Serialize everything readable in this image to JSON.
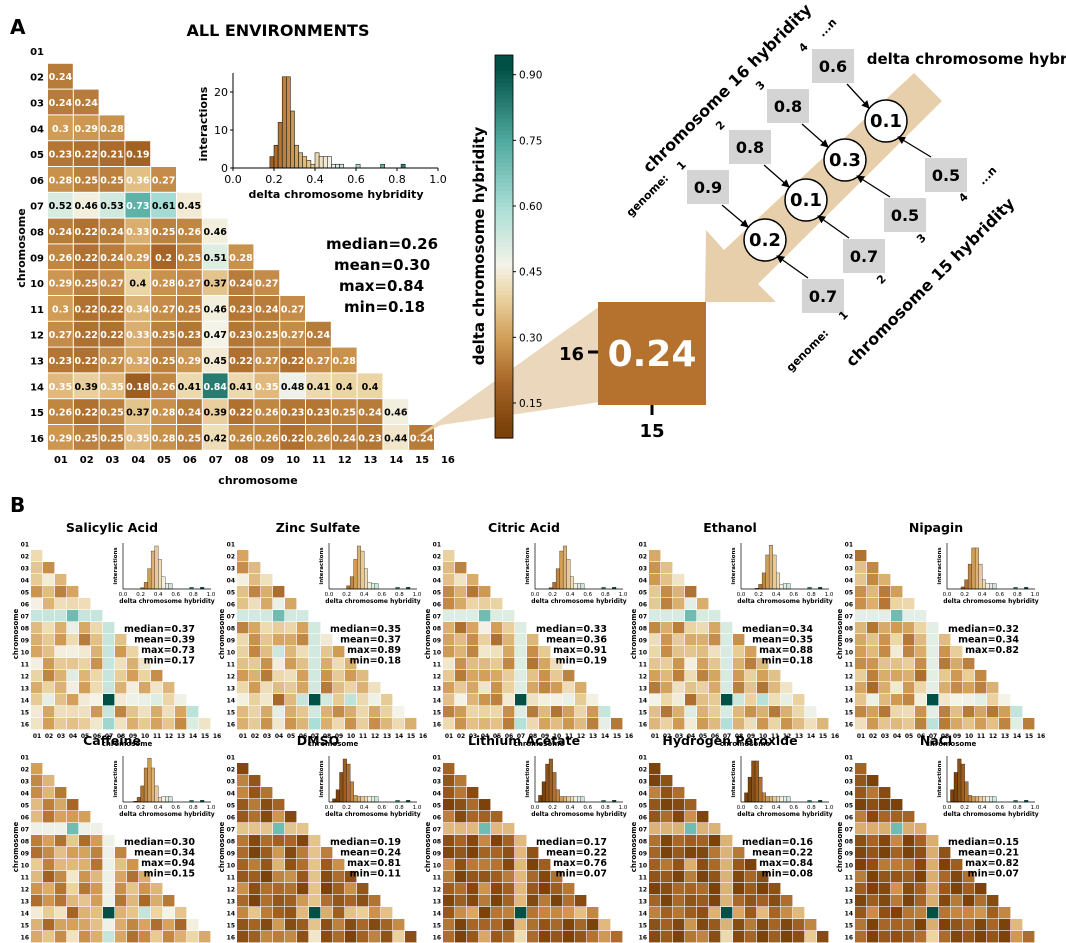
{
  "panel_a": {
    "letter": "A",
    "title": "ALL ENVIRONMENTS",
    "axis_label": "chromosome",
    "chromosomes": [
      "01",
      "02",
      "03",
      "04",
      "05",
      "06",
      "07",
      "08",
      "09",
      "10",
      "11",
      "12",
      "13",
      "14",
      "15",
      "16"
    ],
    "rows": [
      [],
      [
        0.24
      ],
      [
        0.24,
        0.24
      ],
      [
        0.3,
        0.29,
        0.28
      ],
      [
        0.23,
        0.22,
        0.21,
        0.19
      ],
      [
        0.28,
        0.25,
        0.25,
        0.36,
        0.27
      ],
      [
        0.52,
        0.46,
        0.53,
        0.73,
        0.61,
        0.45
      ],
      [
        0.24,
        0.22,
        0.24,
        0.33,
        0.25,
        0.26,
        0.46
      ],
      [
        0.26,
        0.22,
        0.24,
        0.29,
        0.2,
        0.25,
        0.51,
        0.28
      ],
      [
        0.29,
        0.25,
        0.27,
        0.4,
        0.28,
        0.27,
        0.37,
        0.24,
        0.27
      ],
      [
        0.3,
        0.22,
        0.22,
        0.34,
        0.27,
        0.25,
        0.46,
        0.23,
        0.24,
        0.27
      ],
      [
        0.27,
        0.22,
        0.22,
        0.33,
        0.25,
        0.23,
        0.47,
        0.23,
        0.25,
        0.27,
        0.24
      ],
      [
        0.23,
        0.22,
        0.27,
        0.32,
        0.25,
        0.29,
        0.45,
        0.22,
        0.27,
        0.22,
        0.27,
        0.28
      ],
      [
        0.35,
        0.39,
        0.35,
        0.18,
        0.26,
        0.41,
        0.84,
        0.41,
        0.35,
        0.48,
        0.41,
        0.4,
        0.4
      ],
      [
        0.26,
        0.22,
        0.25,
        0.37,
        0.28,
        0.24,
        0.39,
        0.22,
        0.26,
        0.23,
        0.23,
        0.25,
        0.24,
        0.46
      ],
      [
        0.29,
        0.25,
        0.25,
        0.35,
        0.28,
        0.25,
        0.42,
        0.26,
        0.26,
        0.22,
        0.26,
        0.24,
        0.23,
        0.44,
        0.24
      ]
    ],
    "stats": [
      "median=0.26",
      "mean=0.30",
      "max=0.84",
      "min=0.18"
    ],
    "histogram": {
      "ylabel": "interactions",
      "xlabel": "delta chromosome hybridity",
      "yticks": [
        "0",
        "10",
        "20"
      ],
      "xticks": [
        "0.0",
        "0.2",
        "0.4",
        "0.6",
        "0.8",
        "1.0"
      ]
    },
    "colorbar": {
      "label": "delta chromosome hybridity",
      "ticks": [
        "0.90",
        "0.75",
        "0.60",
        "0.45",
        "0.30",
        "0.15"
      ]
    },
    "zoom": {
      "value": "0.24",
      "row_label": "16",
      "col_label": "15"
    }
  },
  "schematic": {
    "axis_title": "delta chromosome hybridity",
    "ch16_label": "chromosome 16 hybridity",
    "ch15_label": "chromosome 15 hybridity",
    "genome_label_16": "genome:",
    "genome_label_15": "genome:",
    "index_labels_16": [
      "1",
      "2",
      "3",
      "4",
      "...n"
    ],
    "index_labels_15": [
      "1",
      "2",
      "3",
      "4",
      "...n"
    ],
    "ch16_values": [
      "0.9",
      "0.8",
      "0.8",
      "0.6"
    ],
    "ch15_values": [
      "0.7",
      "0.7",
      "0.5",
      "0.5"
    ],
    "delta_values": [
      "0.2",
      "0.1",
      "0.3",
      "0.1"
    ]
  },
  "panel_b": {
    "letter": "B",
    "axis_label": "chromosome",
    "hist_xlabel": "delta chromosome hybridity",
    "hist_ylabel": "interactions",
    "hist_xticks": [
      "0.0",
      "0.2",
      "0.4",
      "0.6",
      "0.8",
      "1.0"
    ],
    "panels": [
      {
        "title": "Salicylic Acid",
        "stats": [
          "median=0.37",
          "mean=0.39",
          "max=0.73",
          "min=0.17"
        ],
        "base": 0.37
      },
      {
        "title": "Zinc Sulfate",
        "stats": [
          "median=0.35",
          "mean=0.37",
          "max=0.89",
          "min=0.18"
        ],
        "base": 0.35
      },
      {
        "title": "Citric Acid",
        "stats": [
          "median=0.33",
          "mean=0.36",
          "max=0.91",
          "min=0.19"
        ],
        "base": 0.33
      },
      {
        "title": "Ethanol",
        "stats": [
          "median=0.34",
          "mean=0.35",
          "max=0.88",
          "min=0.18"
        ],
        "base": 0.34
      },
      {
        "title": "Nipagin",
        "stats": [
          "median=0.32",
          "mean=0.34",
          "max=0.82"
        ],
        "base": 0.32
      },
      {
        "title": "Caffeine",
        "stats": [
          "median=0.30",
          "mean=0.34",
          "max=0.94",
          "min=0.15"
        ],
        "base": 0.3
      },
      {
        "title": "DMSO",
        "stats": [
          "median=0.19",
          "mean=0.24",
          "max=0.81",
          "min=0.11"
        ],
        "base": 0.19
      },
      {
        "title": "Lithium Acetate",
        "stats": [
          "median=0.17",
          "mean=0.22",
          "max=0.76",
          "min=0.07"
        ],
        "base": 0.17
      },
      {
        "title": "Hydrogen Peroxide",
        "stats": [
          "median=0.16",
          "mean=0.22",
          "max=0.84",
          "min=0.08"
        ],
        "base": 0.16
      },
      {
        "title": "NaCl",
        "stats": [
          "median=0.15",
          "mean=0.21",
          "max=0.82",
          "min=0.07"
        ],
        "base": 0.15
      }
    ]
  }
}
